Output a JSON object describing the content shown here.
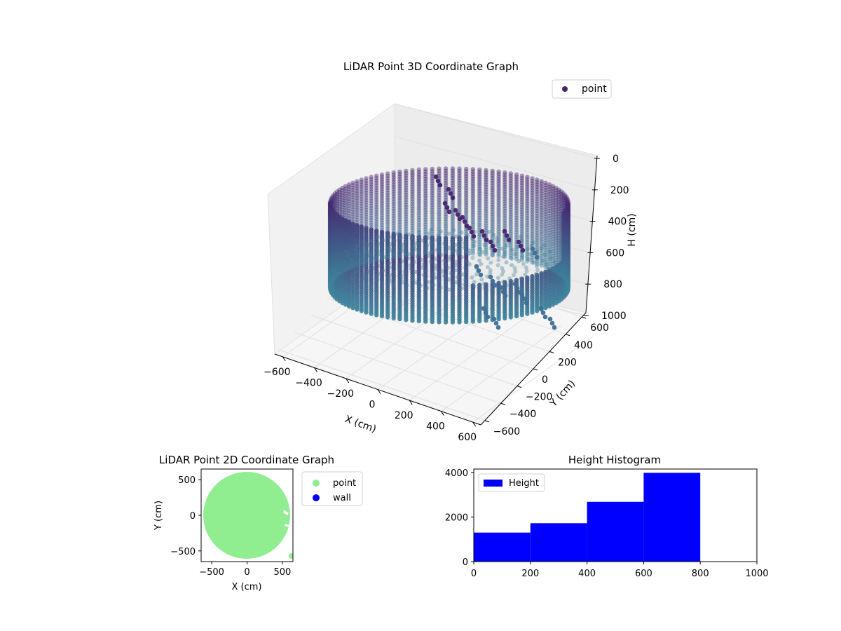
{
  "chart_data": [
    {
      "type": "scatter",
      "projection": "3d",
      "title": "LiDAR Point 3D Coordinate Graph",
      "xlabel": "X (cm)",
      "ylabel": "Y (cm)",
      "zlabel": "H (cm)",
      "xlim": [
        -650,
        650
      ],
      "ylim": [
        -650,
        650
      ],
      "zlim": [
        0,
        1000
      ],
      "zaxis_inverted": true,
      "xticks": [
        "−600",
        "−400",
        "−200",
        "0",
        "200",
        "400",
        "600"
      ],
      "yticks": [
        "−600",
        "−400",
        "−200",
        "0",
        "200",
        "400",
        "600"
      ],
      "zticks": [
        "0",
        "200",
        "400",
        "600",
        "800",
        "1000"
      ],
      "colormap": "viridis",
      "legend": {
        "label": "point",
        "placement": "top-right",
        "color": "#46246f"
      },
      "grid": true,
      "description_of_shape": {
        "wall_radius": 600,
        "wall_height_range": [
          0,
          800
        ],
        "dense_cluster_x_range": [
          200,
          600
        ],
        "dense_cluster_y_range": [
          -400,
          0
        ]
      }
    },
    {
      "type": "scatter",
      "title": "LiDAR Point 2D Coordinate Graph",
      "xlabel": "X (cm)",
      "ylabel": "Y (cm)",
      "xlim": [
        -650,
        650
      ],
      "ylim": [
        -650,
        650
      ],
      "xticks": [
        -500,
        0,
        500
      ],
      "yticks": [
        -500,
        0,
        500
      ],
      "series": [
        {
          "name": "point",
          "color": "#90ee90",
          "shape": "filled disk radius 600 centered at 0,0, clipped at x=630"
        },
        {
          "name": "wall",
          "color": "#0000ff"
        }
      ],
      "legend_placement": "outside right"
    },
    {
      "type": "bar",
      "title": "Height Histogram",
      "bins": [
        [
          0,
          200
        ],
        [
          200,
          400
        ],
        [
          400,
          600
        ],
        [
          600,
          800
        ]
      ],
      "values": [
        1300,
        1720,
        2680,
        3980
      ],
      "xlim": [
        0,
        1000
      ],
      "ylim": [
        0,
        4150
      ],
      "xticks": [
        0,
        200,
        400,
        600,
        800,
        1000
      ],
      "yticks": [
        0,
        2000,
        4000
      ],
      "series": [
        {
          "name": "Height",
          "color": "#0000ff"
        }
      ],
      "legend_placement": "upper left"
    }
  ]
}
